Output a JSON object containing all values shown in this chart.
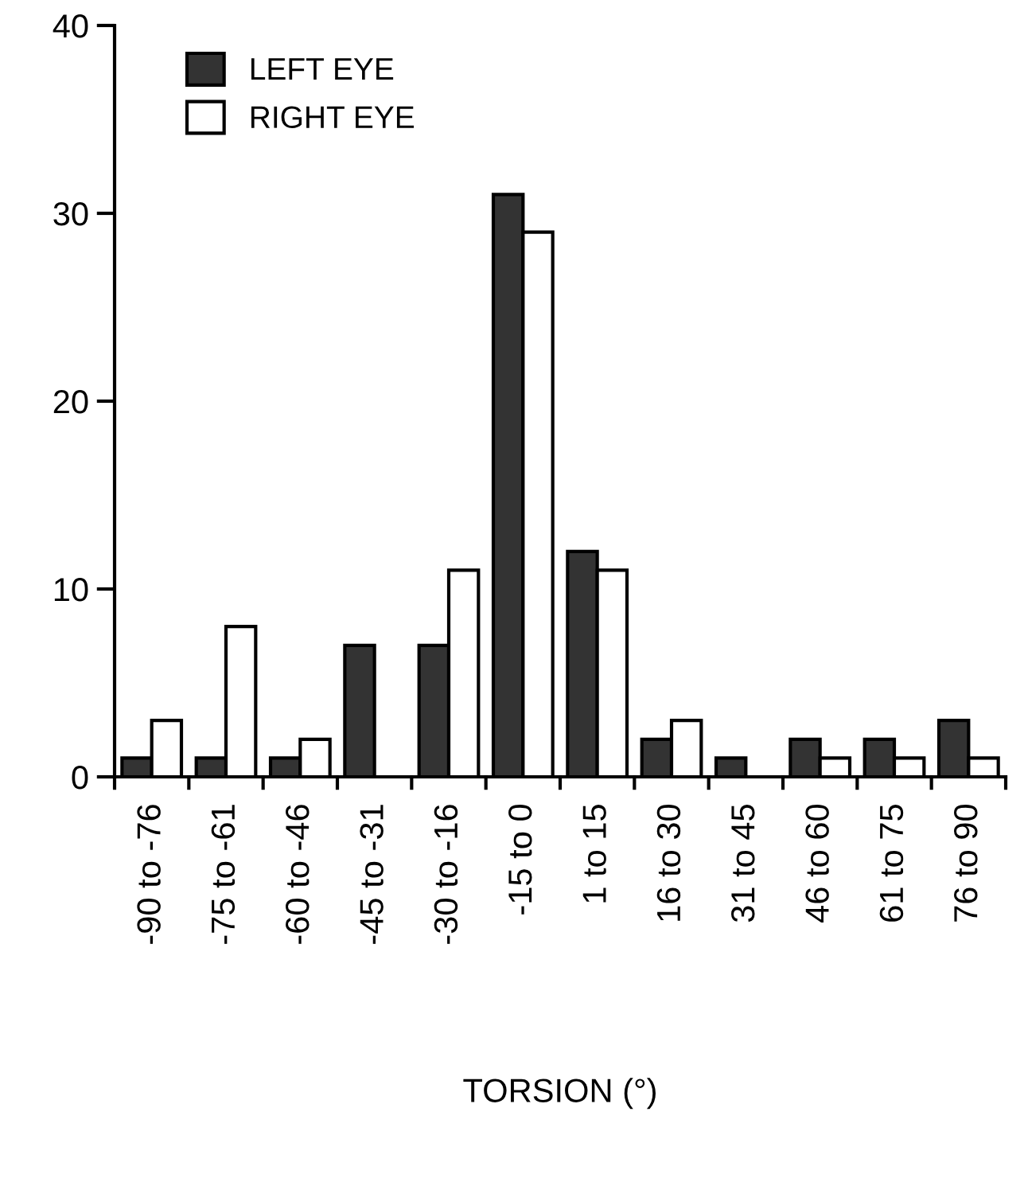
{
  "chart_data": {
    "type": "bar",
    "xlabel": "TORSION (°)",
    "categories": [
      "-90 to -76",
      "-75 to -61",
      "-60 to -46",
      "-45 to -31",
      "-30 to -16",
      "-15 to 0",
      "1 to 15",
      "16 to 30",
      "31 to 45",
      "46 to 60",
      "61 to 75",
      "76 to 90"
    ],
    "series": [
      {
        "name": "LEFT EYE",
        "color": "#333333",
        "values": [
          1,
          1,
          1,
          7,
          7,
          31,
          12,
          2,
          1,
          2,
          2,
          3
        ]
      },
      {
        "name": "RIGHT EYE",
        "color": "#ffffff",
        "values": [
          3,
          8,
          2,
          0,
          11,
          29,
          11,
          3,
          0,
          1,
          1,
          1
        ]
      }
    ],
    "ylim": [
      0,
      40
    ],
    "yticks": [
      0,
      10,
      20,
      30,
      40
    ],
    "grid": false,
    "legend": "top left"
  }
}
